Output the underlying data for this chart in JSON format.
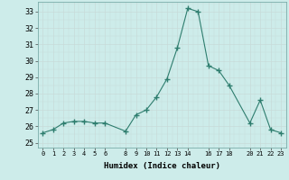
{
  "x": [
    0,
    1,
    2,
    3,
    4,
    5,
    6,
    8,
    9,
    10,
    11,
    12,
    13,
    14,
    15,
    16,
    17,
    18,
    20,
    21,
    22,
    23
  ],
  "y": [
    25.6,
    25.8,
    26.2,
    26.3,
    26.3,
    26.2,
    26.2,
    25.7,
    26.7,
    27.0,
    27.8,
    28.9,
    30.8,
    33.2,
    33.0,
    29.7,
    29.4,
    28.5,
    26.2,
    27.6,
    25.8,
    25.6
  ],
  "xticks": [
    0,
    1,
    2,
    3,
    4,
    5,
    6,
    8,
    9,
    10,
    11,
    12,
    13,
    14,
    16,
    17,
    18,
    20,
    21,
    22,
    23
  ],
  "xtick_labels": [
    "0",
    "1",
    "2",
    "3",
    "4",
    "5",
    "6",
    "8",
    "9",
    "10",
    "11",
    "12",
    "13",
    "14",
    "16",
    "17",
    "18",
    "20",
    "21",
    "22",
    "23"
  ],
  "yticks": [
    25,
    26,
    27,
    28,
    29,
    30,
    31,
    32,
    33
  ],
  "ylim": [
    24.7,
    33.6
  ],
  "xlim": [
    -0.5,
    23.5
  ],
  "xlabel": "Humidex (Indice chaleur)",
  "line_color": "#2e7d6e",
  "marker_color": "#2e7d6e",
  "bg_color": "#cdecea",
  "grid_major_color": "#c8dbd9",
  "grid_minor_color": "#c8dbd9"
}
